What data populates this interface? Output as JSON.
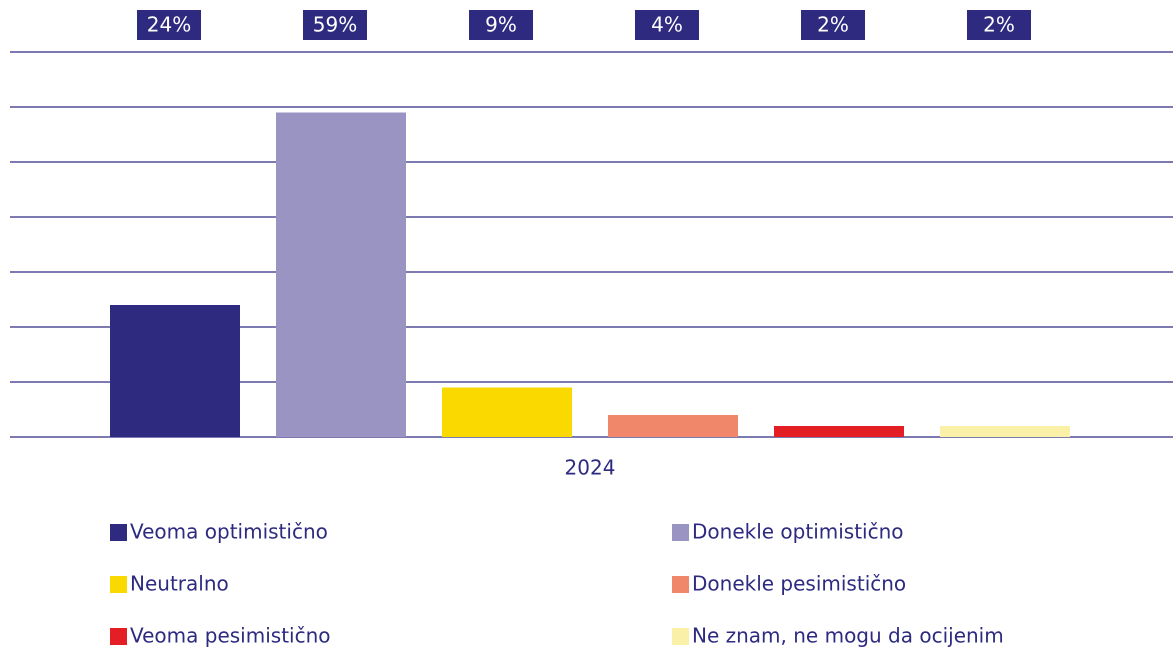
{
  "chart_data": {
    "type": "bar",
    "categories": [
      "2024"
    ],
    "series": [
      {
        "name": "Veoma optimistično",
        "color": "#2e2a80",
        "values": [
          24
        ],
        "value_labels": [
          "24%"
        ]
      },
      {
        "name": "Donekle optimistično",
        "color": "#9a94c3",
        "values": [
          59
        ],
        "value_labels": [
          "59%"
        ]
      },
      {
        "name": "Neutralno",
        "color": "#f9d900",
        "values": [
          9
        ],
        "value_labels": [
          "9%"
        ]
      },
      {
        "name": "Donekle pesimistično",
        "color": "#f0876a",
        "values": [
          4
        ],
        "value_labels": [
          "4%"
        ]
      },
      {
        "name": "Veoma pesimistično",
        "color": "#e31e24",
        "values": [
          2
        ],
        "value_labels": [
          "2%"
        ]
      },
      {
        "name": "Ne znam, ne mogu da ocijenim",
        "color": "#fbf0a7",
        "values": [
          2
        ],
        "value_labels": [
          "2%"
        ]
      }
    ],
    "ylim": [
      0,
      70
    ],
    "yticks": [
      0,
      10,
      20,
      30,
      40,
      50,
      60,
      70
    ],
    "grid": true,
    "legend": "bottom"
  }
}
